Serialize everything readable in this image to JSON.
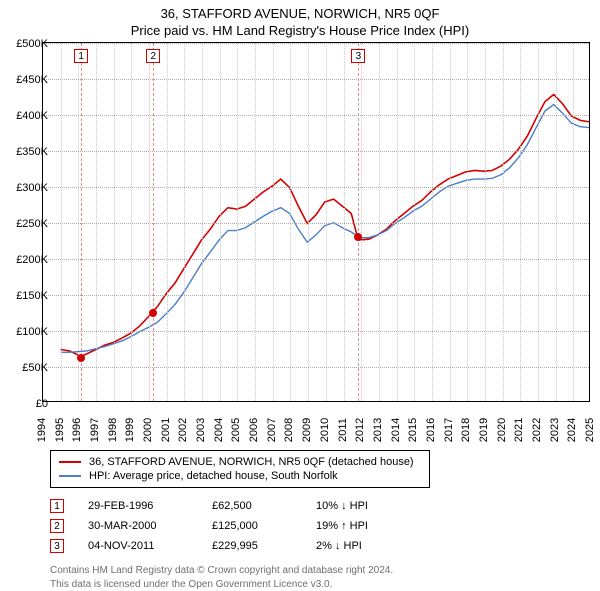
{
  "title_line_1": "36, STAFFORD AVENUE, NORWICH, NR5 0QF",
  "title_line_2": "Price paid vs. HM Land Registry's House Price Index (HPI)",
  "chart": {
    "type": "line",
    "background_color": "#ffffff",
    "grid_color_h": "#aaaaaa",
    "grid_color_v": "#cccccc",
    "axis_color": "#000000",
    "y": {
      "min": 0,
      "max": 500000,
      "tick_step": 50000,
      "ticks": [
        "£0",
        "£50K",
        "£100K",
        "£150K",
        "£200K",
        "£250K",
        "£300K",
        "£350K",
        "£400K",
        "£450K",
        "£500K"
      ],
      "label_fontsize": 11
    },
    "x": {
      "min": 1994,
      "max": 2025,
      "ticks": [
        1994,
        1995,
        1996,
        1997,
        1998,
        1999,
        2000,
        2001,
        2002,
        2003,
        2004,
        2005,
        2006,
        2007,
        2008,
        2009,
        2010,
        2011,
        2012,
        2013,
        2014,
        2015,
        2016,
        2017,
        2018,
        2019,
        2020,
        2021,
        2022,
        2023,
        2024,
        2025
      ],
      "label_fontsize": 11
    },
    "series": [
      {
        "name": "36, STAFFORD AVENUE, NORWICH, NR5 0QF (detached house)",
        "color": "#d40000",
        "line_width": 1.6,
        "points": [
          [
            1995.0,
            72000
          ],
          [
            1995.5,
            70000
          ],
          [
            1996.16,
            62500
          ],
          [
            1996.5,
            66000
          ],
          [
            1997.0,
            72000
          ],
          [
            1997.5,
            78000
          ],
          [
            1998.0,
            82000
          ],
          [
            1998.5,
            88000
          ],
          [
            1999.0,
            95000
          ],
          [
            1999.5,
            105000
          ],
          [
            2000.0,
            118000
          ],
          [
            2000.24,
            125000
          ],
          [
            2000.5,
            132000
          ],
          [
            2001.0,
            150000
          ],
          [
            2001.5,
            165000
          ],
          [
            2002.0,
            185000
          ],
          [
            2002.5,
            205000
          ],
          [
            2003.0,
            225000
          ],
          [
            2003.5,
            240000
          ],
          [
            2004.0,
            258000
          ],
          [
            2004.5,
            270000
          ],
          [
            2005.0,
            268000
          ],
          [
            2005.5,
            272000
          ],
          [
            2006.0,
            282000
          ],
          [
            2006.5,
            292000
          ],
          [
            2007.0,
            300000
          ],
          [
            2007.5,
            310000
          ],
          [
            2008.0,
            298000
          ],
          [
            2008.5,
            272000
          ],
          [
            2009.0,
            248000
          ],
          [
            2009.5,
            260000
          ],
          [
            2010.0,
            278000
          ],
          [
            2010.5,
            282000
          ],
          [
            2011.0,
            272000
          ],
          [
            2011.5,
            262000
          ],
          [
            2011.84,
            229995
          ],
          [
            2012.0,
            225000
          ],
          [
            2012.5,
            226000
          ],
          [
            2013.0,
            232000
          ],
          [
            2013.5,
            240000
          ],
          [
            2014.0,
            252000
          ],
          [
            2014.5,
            262000
          ],
          [
            2015.0,
            272000
          ],
          [
            2015.5,
            280000
          ],
          [
            2016.0,
            292000
          ],
          [
            2016.5,
            302000
          ],
          [
            2017.0,
            310000
          ],
          [
            2017.5,
            315000
          ],
          [
            2018.0,
            320000
          ],
          [
            2018.5,
            322000
          ],
          [
            2019.0,
            321000
          ],
          [
            2019.5,
            322000
          ],
          [
            2020.0,
            328000
          ],
          [
            2020.5,
            338000
          ],
          [
            2021.0,
            352000
          ],
          [
            2021.5,
            370000
          ],
          [
            2022.0,
            395000
          ],
          [
            2022.5,
            418000
          ],
          [
            2023.0,
            428000
          ],
          [
            2023.5,
            415000
          ],
          [
            2024.0,
            398000
          ],
          [
            2024.5,
            392000
          ],
          [
            2025.0,
            390000
          ]
        ]
      },
      {
        "name": "HPI: Average price, detached house, South Norfolk",
        "color": "#4a7ec8",
        "line_width": 1.4,
        "points": [
          [
            1995.0,
            68000
          ],
          [
            1995.5,
            68000
          ],
          [
            1996.0,
            69000
          ],
          [
            1996.5,
            70000
          ],
          [
            1997.0,
            73000
          ],
          [
            1997.5,
            76000
          ],
          [
            1998.0,
            80000
          ],
          [
            1998.5,
            84000
          ],
          [
            1999.0,
            90000
          ],
          [
            1999.5,
            97000
          ],
          [
            2000.0,
            103000
          ],
          [
            2000.5,
            110000
          ],
          [
            2001.0,
            122000
          ],
          [
            2001.5,
            135000
          ],
          [
            2002.0,
            152000
          ],
          [
            2002.5,
            172000
          ],
          [
            2003.0,
            192000
          ],
          [
            2003.5,
            208000
          ],
          [
            2004.0,
            225000
          ],
          [
            2004.5,
            238000
          ],
          [
            2005.0,
            238000
          ],
          [
            2005.5,
            242000
          ],
          [
            2006.0,
            250000
          ],
          [
            2006.5,
            258000
          ],
          [
            2007.0,
            265000
          ],
          [
            2007.5,
            270000
          ],
          [
            2008.0,
            262000
          ],
          [
            2008.5,
            240000
          ],
          [
            2009.0,
            222000
          ],
          [
            2009.5,
            232000
          ],
          [
            2010.0,
            245000
          ],
          [
            2010.5,
            249000
          ],
          [
            2011.0,
            242000
          ],
          [
            2011.5,
            236000
          ],
          [
            2012.0,
            228000
          ],
          [
            2012.5,
            228000
          ],
          [
            2013.0,
            232000
          ],
          [
            2013.5,
            238000
          ],
          [
            2014.0,
            248000
          ],
          [
            2014.5,
            256000
          ],
          [
            2015.0,
            265000
          ],
          [
            2015.5,
            272000
          ],
          [
            2016.0,
            282000
          ],
          [
            2016.5,
            292000
          ],
          [
            2017.0,
            300000
          ],
          [
            2017.5,
            304000
          ],
          [
            2018.0,
            308000
          ],
          [
            2018.5,
            310000
          ],
          [
            2019.0,
            310000
          ],
          [
            2019.5,
            311000
          ],
          [
            2020.0,
            316000
          ],
          [
            2020.5,
            326000
          ],
          [
            2021.0,
            340000
          ],
          [
            2021.5,
            358000
          ],
          [
            2022.0,
            382000
          ],
          [
            2022.5,
            405000
          ],
          [
            2023.0,
            414000
          ],
          [
            2023.5,
            402000
          ],
          [
            2024.0,
            388000
          ],
          [
            2024.5,
            383000
          ],
          [
            2025.0,
            382000
          ]
        ]
      }
    ],
    "markers": [
      {
        "n": "1",
        "year": 1996.16,
        "value": 62500,
        "color": "#d40000"
      },
      {
        "n": "2",
        "year": 2000.24,
        "value": 125000,
        "color": "#d40000"
      },
      {
        "n": "3",
        "year": 2011.84,
        "value": 229995,
        "color": "#d40000"
      }
    ],
    "marker_dot_color": "#d40000",
    "marker_dash_color": "#e09090"
  },
  "legend": {
    "items": [
      {
        "label": "36, STAFFORD AVENUE, NORWICH, NR5 0QF (detached house)",
        "color": "#d40000"
      },
      {
        "label": "HPI: Average price, detached house, South Norfolk",
        "color": "#4a7ec8"
      }
    ]
  },
  "events": [
    {
      "n": "1",
      "date": "29-FEB-1996",
      "price": "£62,500",
      "delta": "10% ↓ HPI",
      "color": "#d40000"
    },
    {
      "n": "2",
      "date": "30-MAR-2000",
      "price": "£125,000",
      "delta": "19% ↑ HPI",
      "color": "#d40000"
    },
    {
      "n": "3",
      "date": "04-NOV-2011",
      "price": "£229,995",
      "delta": "2% ↓ HPI",
      "color": "#d40000"
    }
  ],
  "attribution": {
    "line1": "Contains HM Land Registry data © Crown copyright and database right 2024.",
    "line2": "This data is licensed under the Open Government Licence v3.0."
  }
}
